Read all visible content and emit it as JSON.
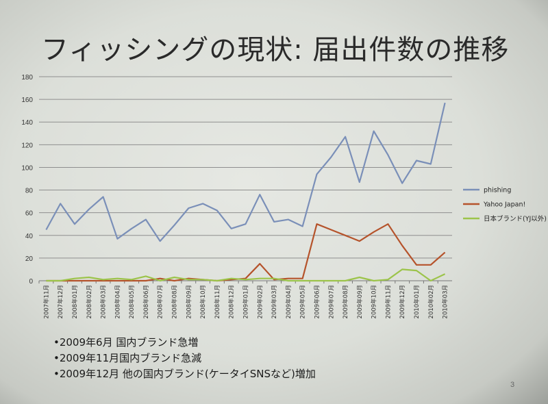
{
  "slide": {
    "title": "フィッシングの現状: 届出件数の推移",
    "page_number": "3",
    "bullets": [
      "•2009年6月 国内ブランド急増",
      "•2009年11月国内ブランド急減",
      "•2009年12月 他の国内ブランド(ケータイSNSなど)増加"
    ]
  },
  "chart_data": {
    "type": "line",
    "categories": [
      "2007年11月",
      "2007年12月",
      "2008年01月",
      "2008年02月",
      "2008年03月",
      "2008年04月",
      "2008年05月",
      "2008年06月",
      "2008年07月",
      "2008年08月",
      "2008年09月",
      "2008年10月",
      "2008年11月",
      "2008年12月",
      "2009年01月",
      "2009年02月",
      "2009年03月",
      "2009年04月",
      "2009年05月",
      "2009年06月",
      "2009年07月",
      "2009年08月",
      "2009年09月",
      "2009年10月",
      "2009年11月",
      "2009年12月",
      "2010年01月",
      "2010年02月",
      "2010年03月"
    ],
    "series": [
      {
        "name": "phishing",
        "color": "#7a8fb8",
        "values": [
          45,
          68,
          50,
          63,
          74,
          37,
          46,
          54,
          35,
          49,
          64,
          68,
          62,
          46,
          50,
          76,
          52,
          54,
          48,
          94,
          109,
          127,
          87,
          132,
          111,
          86,
          106,
          103,
          157
        ]
      },
      {
        "name": "Yahoo Japan!",
        "color": "#b5532b",
        "values": [
          0,
          0,
          0,
          0,
          0,
          0,
          0,
          0,
          2,
          0,
          2,
          1,
          0,
          1,
          2,
          15,
          1,
          2,
          2,
          50,
          45,
          40,
          35,
          43,
          50,
          31,
          14,
          14,
          25
        ]
      },
      {
        "name": "日本ブランド(YJ以外)",
        "color": "#9cc44a",
        "values": [
          0,
          0,
          2,
          3,
          1,
          2,
          1,
          4,
          0,
          3,
          1,
          1,
          0,
          2,
          1,
          2,
          2,
          0,
          0,
          0,
          0,
          0,
          3,
          0,
          1,
          10,
          9,
          0,
          6
        ]
      }
    ],
    "yticks": [
      "0",
      "20",
      "40",
      "60",
      "80",
      "100",
      "120",
      "140",
      "160",
      "180"
    ],
    "ylim": [
      0,
      180
    ],
    "grid": true,
    "legend_position": "right"
  }
}
